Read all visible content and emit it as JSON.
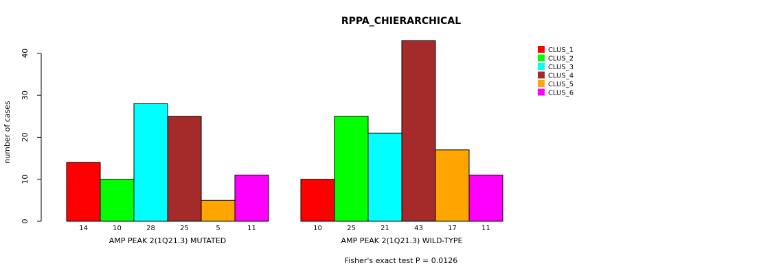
{
  "chart_data": {
    "type": "bar",
    "title": "RPPA_CHIERARCHICAL",
    "ylabel": "number of cases",
    "ylim": [
      0,
      40
    ],
    "yticks": [
      0,
      10,
      20,
      30,
      40
    ],
    "groups": [
      {
        "label": "AMP PEAK  2(1Q21.3) MUTATED",
        "values": [
          14,
          10,
          28,
          25,
          5,
          11
        ]
      },
      {
        "label": "AMP PEAK  2(1Q21.3) WILD-TYPE",
        "values": [
          10,
          25,
          21,
          43,
          17,
          11
        ]
      }
    ],
    "series": [
      {
        "name": "CLUS_1",
        "color": "#ff0000"
      },
      {
        "name": "CLUS_2",
        "color": "#00ff00"
      },
      {
        "name": "CLUS_3",
        "color": "#00ffff"
      },
      {
        "name": "CLUS_4",
        "color": "#a52a2a"
      },
      {
        "name": "CLUS_5",
        "color": "#ffa500"
      },
      {
        "name": "CLUS_6",
        "color": "#ff00ff"
      }
    ],
    "legend_position": "top-right",
    "grid": false,
    "footnote": "Fisher's exact test P = 0.0126"
  }
}
